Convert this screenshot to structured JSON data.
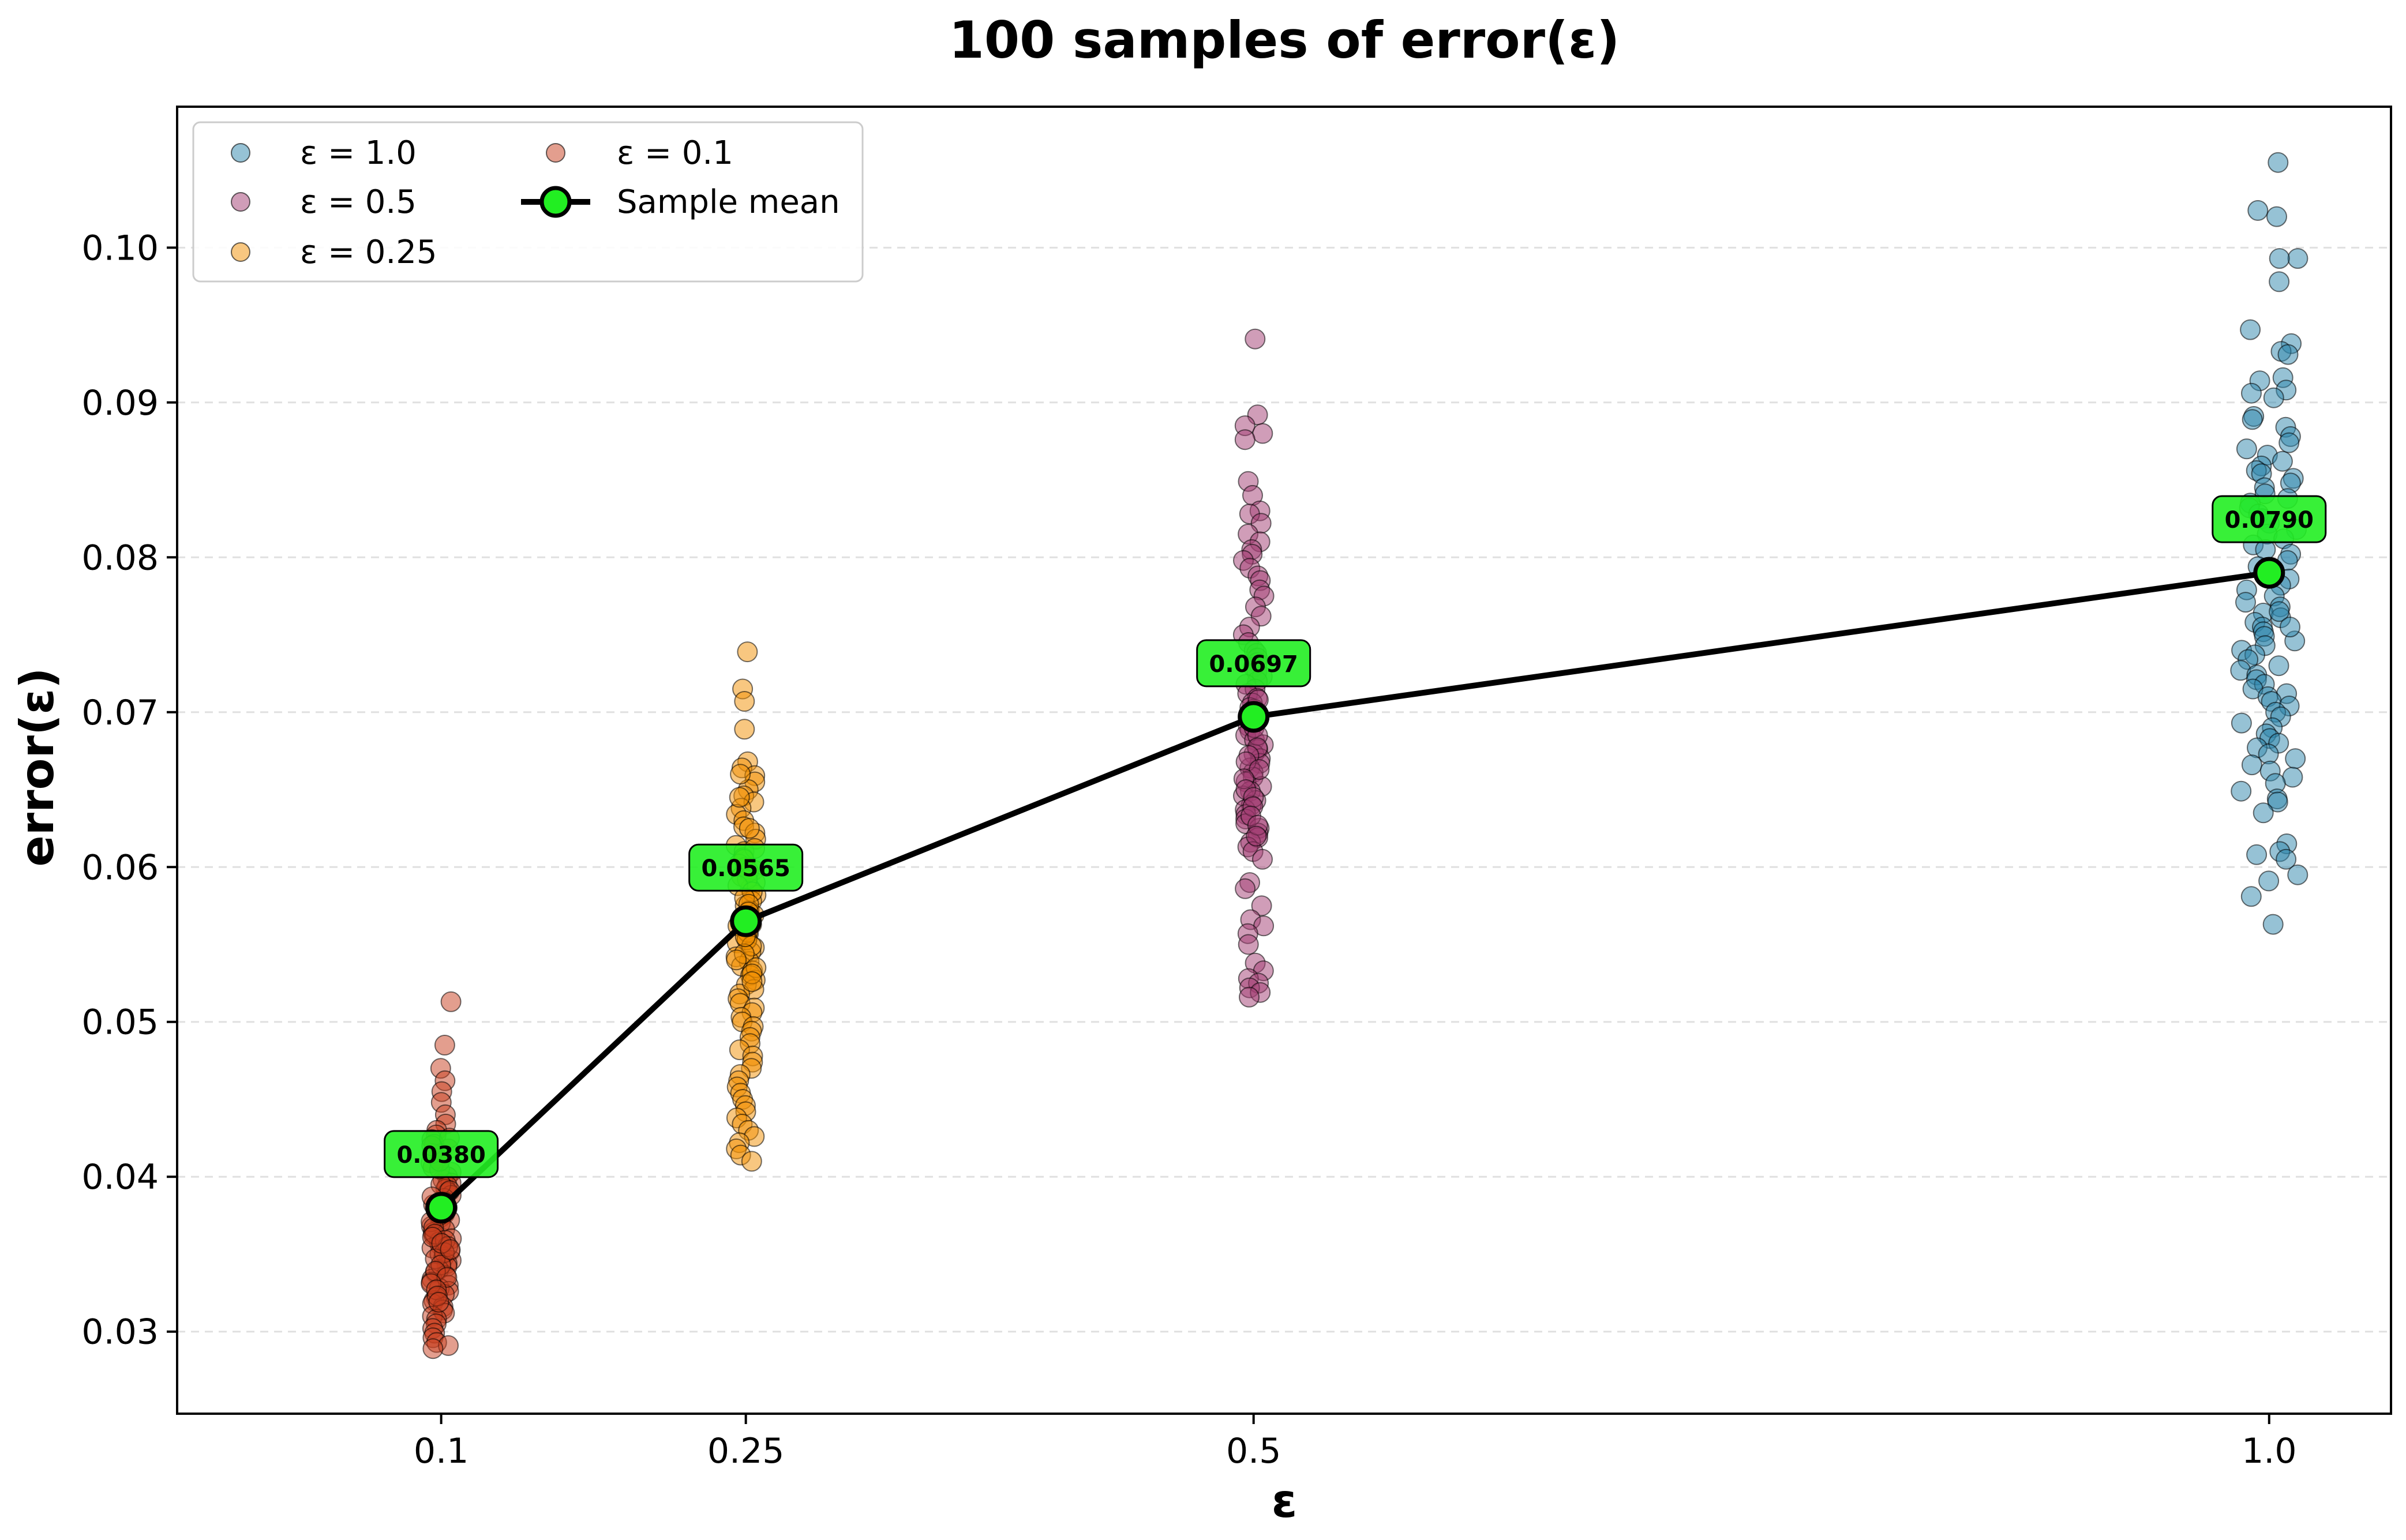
{
  "chart_data": {
    "type": "scatter",
    "title": "100 samples of error(ε)",
    "xlabel": "ε",
    "ylabel": "error(ε)",
    "x_ticks": [
      "0.1",
      "0.25",
      "0.5",
      "1.0"
    ],
    "y_ticks": [
      "0.03",
      "0.04",
      "0.05",
      "0.06",
      "0.07",
      "0.08",
      "0.09",
      "0.10"
    ],
    "xlim": [
      -0.03,
      1.06
    ],
    "ylim": [
      0.0247,
      0.1091
    ],
    "grid": "horizontal dashed",
    "legend_placement": "top-left",
    "series": [
      {
        "name": "ε = 1.0",
        "x": 1.0,
        "color": "#2E86AB",
        "mean": 0.079,
        "min": 0.0563,
        "max": 0.1055,
        "values": [
          0.1055,
          0.1024,
          0.102,
          0.0993,
          0.0993,
          0.0978,
          0.0947,
          0.0938,
          0.0933,
          0.0931,
          0.0916,
          0.0914,
          0.0908,
          0.0906,
          0.0903,
          0.0891,
          0.0889,
          0.0884,
          0.0878,
          0.0874,
          0.087,
          0.0866,
          0.0862,
          0.0859,
          0.0856,
          0.0854,
          0.0851,
          0.0848,
          0.0845,
          0.0841,
          0.0838,
          0.0835,
          0.0832,
          0.0828,
          0.0825,
          0.0822,
          0.0818,
          0.0815,
          0.0812,
          0.0808,
          0.0805,
          0.0802,
          0.0798,
          0.0794,
          0.079,
          0.0786,
          0.0782,
          0.0779,
          0.0775,
          0.0771,
          0.0768,
          0.0764,
          0.0761,
          0.0758,
          0.0755,
          0.0752,
          0.0749,
          0.0746,
          0.0743,
          0.074,
          0.0737,
          0.0734,
          0.073,
          0.0727,
          0.0724,
          0.0721,
          0.0718,
          0.0715,
          0.0712,
          0.071,
          0.0707,
          0.0704,
          0.07,
          0.0697,
          0.0693,
          0.069,
          0.0686,
          0.0683,
          0.068,
          0.0677,
          0.0673,
          0.067,
          0.0666,
          0.0662,
          0.0658,
          0.0654,
          0.0649,
          0.0644,
          0.0642,
          0.0635,
          0.0615,
          0.061,
          0.0608,
          0.0605,
          0.0595,
          0.0591,
          0.0581,
          0.0563,
          0.0765,
          0.0755
        ]
      },
      {
        "name": "ε = 0.5",
        "x": 0.5,
        "color": "#A23B72",
        "mean": 0.0697,
        "min": 0.0516,
        "max": 0.0941,
        "values": [
          0.0941,
          0.0892,
          0.0885,
          0.088,
          0.0876,
          0.0849,
          0.084,
          0.083,
          0.0828,
          0.0822,
          0.0815,
          0.081,
          0.0805,
          0.0802,
          0.0798,
          0.0793,
          0.0788,
          0.0785,
          0.0779,
          0.0775,
          0.0768,
          0.0762,
          0.0755,
          0.075,
          0.0745,
          0.074,
          0.0738,
          0.0735,
          0.0732,
          0.0729,
          0.0726,
          0.0723,
          0.072,
          0.0718,
          0.0715,
          0.0712,
          0.0709,
          0.0706,
          0.0703,
          0.07,
          0.0697,
          0.0694,
          0.0691,
          0.0688,
          0.0685,
          0.0682,
          0.0679,
          0.0676,
          0.0673,
          0.067,
          0.0667,
          0.0664,
          0.0661,
          0.0658,
          0.0655,
          0.0652,
          0.0649,
          0.0646,
          0.0643,
          0.064,
          0.0637,
          0.0634,
          0.0631,
          0.0628,
          0.0625,
          0.0622,
          0.0619,
          0.0616,
          0.0613,
          0.061,
          0.0605,
          0.059,
          0.0586,
          0.0575,
          0.0566,
          0.0562,
          0.0557,
          0.055,
          0.0538,
          0.0533,
          0.0528,
          0.0525,
          0.0522,
          0.0519,
          0.0516,
          0.0702,
          0.0708,
          0.069,
          0.0685,
          0.0677,
          0.0672,
          0.0668,
          0.0663,
          0.0657,
          0.065,
          0.0645,
          0.0639,
          0.0633,
          0.0627,
          0.062
        ]
      },
      {
        "name": "ε = 0.25",
        "x": 0.25,
        "color": "#F18F01",
        "mean": 0.0565,
        "min": 0.041,
        "max": 0.0739,
        "values": [
          0.0739,
          0.0715,
          0.0707,
          0.0689,
          0.0668,
          0.0664,
          0.0659,
          0.0655,
          0.065,
          0.0646,
          0.0642,
          0.0638,
          0.0634,
          0.063,
          0.0626,
          0.0622,
          0.0618,
          0.0614,
          0.061,
          0.0606,
          0.0602,
          0.0598,
          0.0594,
          0.059,
          0.0586,
          0.0582,
          0.0578,
          0.0575,
          0.0572,
          0.0569,
          0.0566,
          0.0563,
          0.056,
          0.0557,
          0.0554,
          0.0551,
          0.0548,
          0.0545,
          0.0542,
          0.0539,
          0.0536,
          0.0533,
          0.053,
          0.0527,
          0.0524,
          0.0521,
          0.0518,
          0.0515,
          0.0512,
          0.0509,
          0.0506,
          0.0503,
          0.05,
          0.0497,
          0.0494,
          0.049,
          0.0486,
          0.0482,
          0.0478,
          0.0474,
          0.047,
          0.0466,
          0.0462,
          0.0458,
          0.0454,
          0.045,
          0.0446,
          0.0442,
          0.0438,
          0.0434,
          0.043,
          0.0426,
          0.0422,
          0.0418,
          0.0414,
          0.041,
          0.06,
          0.0597,
          0.0592,
          0.0588,
          0.0584,
          0.058,
          0.0576,
          0.0571,
          0.0567,
          0.0562,
          0.0558,
          0.0553,
          0.0549,
          0.0544,
          0.054,
          0.0535,
          0.0531,
          0.0526,
          0.066,
          0.0645,
          0.0625,
          0.0612,
          0.0605,
          0.0555
        ]
      },
      {
        "name": "ε = 0.1",
        "x": 0.1,
        "color": "#C73E1D",
        "mean": 0.038,
        "min": 0.0289,
        "max": 0.0513,
        "values": [
          0.0513,
          0.0485,
          0.047,
          0.0462,
          0.0455,
          0.0448,
          0.044,
          0.0434,
          0.043,
          0.0427,
          0.0424,
          0.0421,
          0.0418,
          0.0415,
          0.0412,
          0.0409,
          0.0406,
          0.0403,
          0.04,
          0.0398,
          0.0396,
          0.0394,
          0.0392,
          0.039,
          0.0388,
          0.0386,
          0.0384,
          0.0382,
          0.038,
          0.0378,
          0.0376,
          0.0374,
          0.0372,
          0.037,
          0.0368,
          0.0366,
          0.0364,
          0.0362,
          0.036,
          0.0358,
          0.0356,
          0.0354,
          0.0352,
          0.035,
          0.0348,
          0.0346,
          0.0344,
          0.0342,
          0.034,
          0.0338,
          0.0336,
          0.0334,
          0.0332,
          0.033,
          0.0328,
          0.0326,
          0.0324,
          0.0322,
          0.032,
          0.0318,
          0.0316,
          0.0314,
          0.0312,
          0.031,
          0.0308,
          0.0305,
          0.0302,
          0.0299,
          0.0296,
          0.0293,
          0.0291,
          0.0289,
          0.0395,
          0.0391,
          0.0387,
          0.0383,
          0.0379,
          0.0375,
          0.0371,
          0.0367,
          0.0363,
          0.0359,
          0.0355,
          0.0351,
          0.0347,
          0.0343,
          0.0339,
          0.0335,
          0.0331,
          0.0327,
          0.0323,
          0.0319,
          0.0405,
          0.041,
          0.0415,
          0.042,
          0.0425,
          0.0361,
          0.0357,
          0.0353
        ]
      }
    ],
    "mean_series": {
      "name": "Sample mean",
      "x": [
        0.1,
        0.25,
        0.5,
        1.0
      ],
      "y": [
        0.038,
        0.0565,
        0.0697,
        0.079
      ],
      "labels": [
        "0.0380",
        "0.0565",
        "0.0697",
        "0.0790"
      ],
      "line_color": "#000000",
      "marker_color": "#22EE22"
    }
  }
}
